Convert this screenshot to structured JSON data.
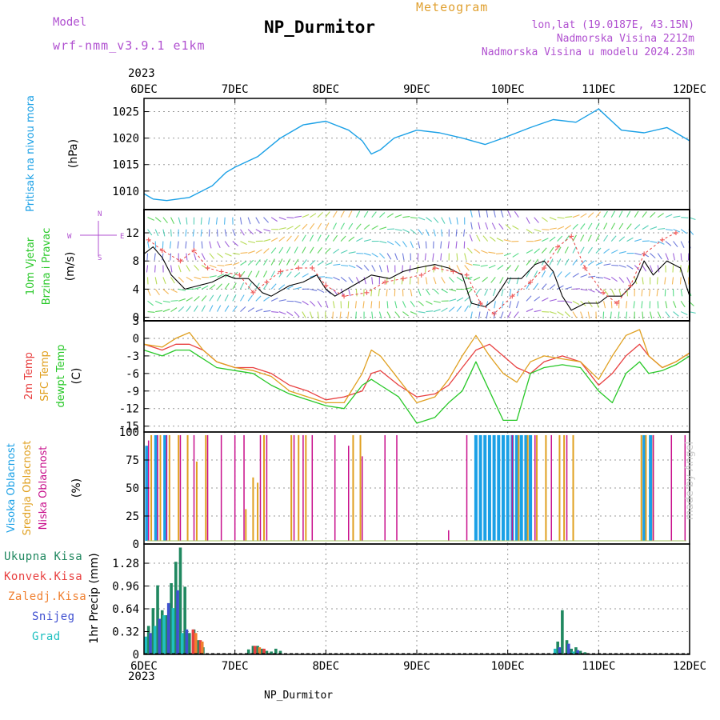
{
  "header": {
    "model_label": "Model",
    "model_value": "wrf-nmm_v3.9.1 e1km",
    "station": "NP_Durmitor",
    "product": "Meteogram",
    "lonlat": "lon,lat (19.0187E, 43.15N)",
    "elevation": "Nadmorska Visina 2212m",
    "elevation_model": "Nadmorska Visina u modelu 2024.23m"
  },
  "xaxis": {
    "year": "2023",
    "labels": [
      "6DEC",
      "7DEC",
      "8DEC",
      "9DEC",
      "10DEC",
      "11DEC",
      "12DEC"
    ]
  },
  "footer": {
    "station": "NP_Durmitor",
    "credit": "made by Angel"
  },
  "colors": {
    "pressure": "#1aa0e6",
    "temp2m": "#e84040",
    "sfc": "#e0a020",
    "dewpt": "#28c828",
    "high_cloud": "#1aa0e6",
    "mid_cloud": "#e0a020",
    "low_cloud": "#c8108c",
    "total": "#208860",
    "conv": "#e84040",
    "frozen": "#f08030",
    "snow": "#4050d0",
    "grad": "#20c0c0",
    "wind_axis": "#b050d0",
    "wind_label": "#28c828"
  },
  "chart_data": [
    {
      "type": "line",
      "panel": "pressure",
      "ylabel_title": "Pritisak na nivou mora",
      "unit": "(hPa)",
      "yticks": [
        "1010",
        "1015",
        "1020",
        "1025"
      ],
      "ylim": [
        1006.5,
        1027.5
      ],
      "x_days": [
        0,
        0.1,
        0.25,
        0.5,
        0.75,
        0.9,
        1,
        1.25,
        1.5,
        1.75,
        2,
        2.25,
        2.4,
        2.5,
        2.6,
        2.75,
        3,
        3.25,
        3.5,
        3.75,
        3.95,
        4.25,
        4.5,
        4.75,
        5,
        5.25,
        5.5,
        5.75,
        6
      ],
      "values": [
        1009.5,
        1008.5,
        1008.2,
        1008.8,
        1011.0,
        1013.5,
        1014.5,
        1016.5,
        1020.0,
        1022.5,
        1023.2,
        1021.5,
        1019.5,
        1017.0,
        1017.8,
        1020.0,
        1021.5,
        1021.0,
        1020.0,
        1018.8,
        1020.0,
        1022.0,
        1023.5,
        1023.0,
        1025.5,
        1021.5,
        1021.0,
        1022.0,
        1019.5
      ]
    },
    {
      "type": "line",
      "panel": "wind",
      "ylabel_lines": [
        "10m Vjetar",
        "Brzina i Pravac"
      ],
      "unit": "(m/s)",
      "direction_key": [
        "N",
        "E",
        "S",
        "W"
      ],
      "yticks": [
        "0",
        "4",
        "8",
        "12"
      ],
      "ylim": [
        -0.5,
        15.3
      ],
      "series": [
        {
          "name": "speed",
          "x": [
            0,
            0.1,
            0.2,
            0.3,
            0.45,
            0.6,
            0.75,
            0.9,
            1,
            1.15,
            1.3,
            1.4,
            1.6,
            1.75,
            1.9,
            2,
            2.1,
            2.3,
            2.5,
            2.7,
            2.85,
            3,
            3.2,
            3.35,
            3.5,
            3.6,
            3.75,
            3.85,
            4,
            4.15,
            4.3,
            4.4,
            4.5,
            4.6,
            4.7,
            4.85,
            5,
            5.1,
            5.25,
            5.4,
            5.5,
            5.6,
            5.75,
            5.9,
            6
          ],
          "values": [
            9,
            10,
            8.5,
            6,
            4,
            4.5,
            5,
            6,
            5.5,
            5.5,
            3.5,
            3,
            4.5,
            5,
            6,
            4,
            3,
            4.5,
            6,
            5.5,
            6.5,
            7,
            7.5,
            7,
            6,
            2,
            1.5,
            2.5,
            5.5,
            5.5,
            7.5,
            8,
            6.5,
            3,
            1,
            2,
            2,
            3,
            3,
            5,
            8,
            6,
            8,
            7,
            3
          ]
        },
        {
          "name": "gusts",
          "x": [
            0.05,
            0.2,
            0.4,
            0.55,
            0.7,
            0.85,
            1.05,
            1.2,
            1.35,
            1.5,
            1.7,
            1.85,
            2.0,
            2.2,
            2.45,
            2.65,
            2.85,
            3.05,
            3.2,
            3.4,
            3.55,
            3.7,
            3.85,
            4.05,
            4.25,
            4.4,
            4.55,
            4.7,
            4.85,
            5.05,
            5.2,
            5.35,
            5.5,
            5.7,
            5.85
          ],
          "values": [
            11,
            9.5,
            8,
            9.5,
            7,
            6.5,
            6,
            3.5,
            5,
            6.5,
            7,
            7,
            4.5,
            3,
            3.5,
            5,
            5.5,
            6,
            7,
            6.5,
            6,
            2,
            0.5,
            3,
            5,
            7,
            10,
            11.5,
            7,
            3.5,
            2,
            4.5,
            9,
            11,
            12
          ]
        }
      ]
    },
    {
      "type": "line",
      "panel": "temperature",
      "ylabel_lines": [
        "2m Temp",
        "SFC Temp",
        "dewpt Temp"
      ],
      "unit": "(C)",
      "yticks": [
        "-15",
        "-12",
        "-9",
        "-6",
        "-3",
        "0",
        "3"
      ],
      "ylim": [
        -16,
        3
      ],
      "x": [
        0,
        0.2,
        0.35,
        0.5,
        0.65,
        0.8,
        1,
        1.2,
        1.4,
        1.6,
        1.8,
        2,
        2.2,
        2.4,
        2.5,
        2.6,
        2.8,
        3,
        3.2,
        3.35,
        3.5,
        3.65,
        3.8,
        3.95,
        4.1,
        4.25,
        4.4,
        4.6,
        4.8,
        5,
        5.15,
        5.3,
        5.45,
        5.55,
        5.7,
        5.85,
        6
      ],
      "series": [
        {
          "name": "2m Temp",
          "values": [
            -1,
            -2,
            -1,
            -1,
            -2,
            -4,
            -5,
            -5,
            -6,
            -8,
            -9,
            -10.5,
            -10,
            -9,
            -6,
            -5.5,
            -8,
            -10,
            -9.5,
            -8,
            -5,
            -2,
            -1,
            -3,
            -5,
            -6,
            -4,
            -3,
            -4,
            -8,
            -6,
            -3,
            -1,
            -3,
            -5,
            -4,
            -2.5
          ]
        },
        {
          "name": "SFC Temp",
          "values": [
            -1,
            -1.5,
            0,
            1,
            -2,
            -4,
            -5,
            -5.5,
            -6.5,
            -9,
            -10,
            -11,
            -11,
            -6,
            -2,
            -3,
            -7,
            -11,
            -10,
            -7,
            -3,
            0.5,
            -3,
            -6,
            -7.5,
            -4,
            -3,
            -3.5,
            -4,
            -7,
            -3,
            0.5,
            1.5,
            -3,
            -5,
            -4,
            -2.5
          ]
        },
        {
          "name": "dewpt Temp",
          "values": [
            -2,
            -3,
            -2,
            -2,
            -3.5,
            -5,
            -5.5,
            -6,
            -8,
            -9.5,
            -10.5,
            -11.5,
            -12,
            -8,
            -7,
            -8,
            -10,
            -14.5,
            -13.5,
            -11,
            -9,
            -4,
            -9,
            -14,
            -14,
            -6,
            -5,
            -4.5,
            -5,
            -9,
            -11,
            -6,
            -4,
            -6,
            -5.5,
            -4.5,
            -3
          ]
        }
      ]
    },
    {
      "type": "bar",
      "panel": "cloud",
      "ylabel_lines": [
        "Visoka Oblacnost",
        "Srednja Oblacnost",
        "Niska Oblacnost"
      ],
      "unit": "(%)",
      "yticks": [
        "0",
        "25",
        "50",
        "75",
        "100"
      ],
      "ylim": [
        0,
        100
      ],
      "series": [
        {
          "name": "Visoka Oblacnost",
          "x": [
            0.03,
            0.13,
            0.23,
            3.65,
            3.7,
            3.75,
            3.8,
            3.85,
            3.9,
            3.95,
            4.0,
            4.05,
            4.1,
            4.15,
            4.2,
            4.25,
            5.5,
            5.57
          ],
          "values": [
            90,
            100,
            100,
            100,
            100,
            100,
            100,
            100,
            100,
            100,
            100,
            100,
            100,
            100,
            100,
            100,
            100,
            100
          ]
        },
        {
          "name": "Srednja Oblacnost",
          "x": [
            0.08,
            0.18,
            0.28,
            0.38,
            0.48,
            0.58,
            0.68,
            1.12,
            1.2,
            1.25,
            1.32,
            1.62,
            1.7,
            1.78,
            2.3,
            2.38,
            4.12,
            4.22,
            4.32,
            4.42,
            4.57,
            4.62,
            4.72,
            5.47,
            5.52,
            5.6
          ],
          "values": [
            100,
            100,
            100,
            100,
            100,
            75,
            100,
            30,
            60,
            55,
            100,
            100,
            100,
            100,
            100,
            100,
            100,
            100,
            100,
            100,
            100,
            100,
            100,
            100,
            100,
            100
          ]
        },
        {
          "name": "Niska Oblacnost",
          "x": [
            0.05,
            0.15,
            0.25,
            0.4,
            0.55,
            0.7,
            0.85,
            1.0,
            1.1,
            1.28,
            1.35,
            1.65,
            1.75,
            1.85,
            2.1,
            2.25,
            2.4,
            2.65,
            2.78,
            3.35,
            3.55,
            4.05,
            4.3,
            4.48,
            4.65,
            5.6,
            5.8,
            5.95
          ],
          "values": [
            95,
            100,
            100,
            100,
            100,
            100,
            100,
            100,
            100,
            100,
            100,
            100,
            100,
            100,
            100,
            90,
            80,
            100,
            100,
            10,
            100,
            100,
            100,
            100,
            100,
            100,
            100,
            100
          ]
        }
      ]
    },
    {
      "type": "bar",
      "panel": "precip",
      "ylabel_lines": [
        "Ukupna Kisa",
        "Konvek.Kisa",
        "Zaledj.Kisa",
        "Snijeg",
        "Grad"
      ],
      "unit": "1hr Precip (mm)",
      "yticks": [
        "0",
        "0.32",
        "0.64",
        "0.96",
        "1.28"
      ],
      "ylim": [
        0,
        1.55
      ],
      "series": [
        {
          "name": "Ukupna Kisa",
          "x": [
            0.05,
            0.1,
            0.15,
            0.2,
            0.25,
            0.3,
            0.35,
            0.4,
            0.45,
            0.5,
            0.55,
            0.6,
            0.65,
            1.15,
            1.2,
            1.25,
            1.3,
            1.35,
            1.4,
            1.45,
            1.5,
            4.55,
            4.6,
            4.65,
            4.7,
            4.75,
            4.8,
            4.85
          ],
          "values": [
            0.4,
            0.65,
            0.97,
            0.62,
            0.55,
            1.0,
            1.3,
            1.5,
            0.95,
            0.3,
            0.35,
            0.2,
            0.1,
            0.07,
            0.12,
            0.12,
            0.08,
            0.05,
            0.04,
            0.08,
            0.05,
            0.18,
            0.62,
            0.2,
            0.08,
            0.1,
            0.05,
            0.03
          ]
        },
        {
          "name": "Konvek.Kisa",
          "x": [
            0.54,
            0.62,
            1.22,
            1.32
          ],
          "values": [
            0.35,
            0.2,
            0.12,
            0.08
          ]
        },
        {
          "name": "Zaledj.Kisa",
          "x": [
            0.57,
            0.64,
            1.27
          ],
          "values": [
            0.3,
            0.18,
            0.1
          ]
        },
        {
          "name": "Snijeg",
          "x": [
            0.07,
            0.17,
            0.27,
            0.37,
            0.47,
            4.57,
            4.67,
            4.77
          ],
          "values": [
            0.3,
            0.5,
            0.72,
            0.9,
            0.35,
            0.1,
            0.15,
            0.06
          ]
        },
        {
          "name": "Grad",
          "x": [
            0.02,
            0.12,
            0.22,
            0.32,
            0.42,
            4.52,
            4.72
          ],
          "values": [
            0.25,
            0.4,
            0.55,
            0.65,
            0.3,
            0.08,
            0.04
          ]
        }
      ]
    }
  ]
}
